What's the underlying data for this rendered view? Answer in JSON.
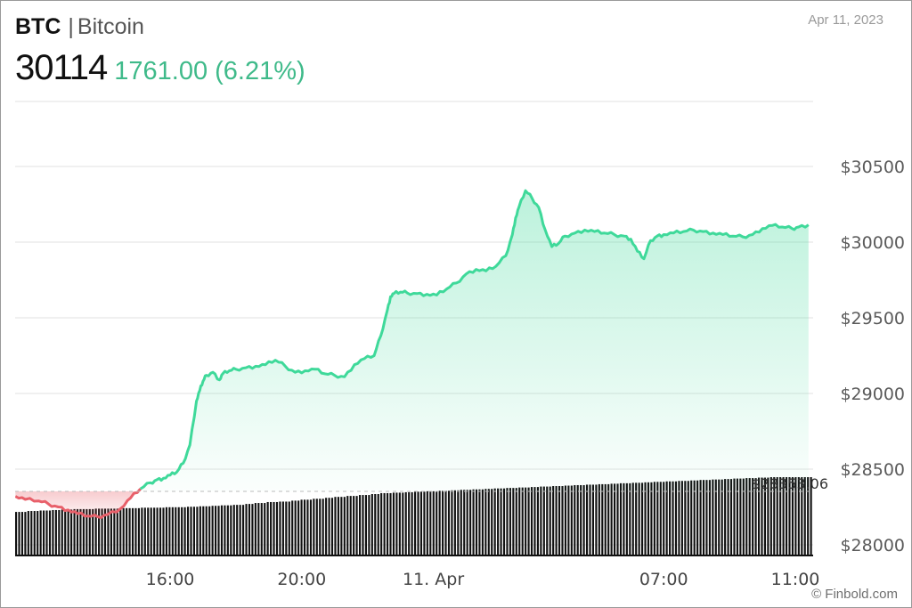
{
  "header": {
    "symbol": "BTC",
    "separator": "|",
    "name": "Bitcoin",
    "price": "30114",
    "change": "1761.00 (6.21%)",
    "date": "Apr 11, 2023"
  },
  "watermark": "© Finbold.com",
  "colors": {
    "up": "#3fd99a",
    "down": "#e8606a",
    "grid": "#e2e2e2",
    "volume": "#111111"
  },
  "chart_data": {
    "type": "area",
    "ylim": [
      27950,
      30750
    ],
    "y_ticks": [
      "$28000",
      "$28500",
      "$29000",
      "$29500",
      "$30000",
      "$30500"
    ],
    "y_tick_values": [
      28000,
      28500,
      29000,
      29500,
      30000,
      30500
    ],
    "x_tick_labels": [
      "16:00",
      "20:00",
      "11. Apr",
      "07:00",
      "11:00"
    ],
    "x_tick_hours": [
      16,
      20,
      24,
      31,
      35
    ],
    "x_range_hours": [
      11.3,
      35.4
    ],
    "reference": {
      "label": "$28353.06",
      "value": 28353.06
    },
    "series": [
      {
        "x": [
          11.3,
          11.6,
          12.0,
          12.3,
          12.6,
          12.9,
          13.2,
          13.5,
          13.8,
          14.1,
          14.5,
          14.8,
          15.1,
          15.4,
          15.6,
          15.8,
          16.0,
          16.2,
          16.4,
          16.6,
          16.8,
          16.9,
          17.0,
          17.1,
          17.3,
          17.5,
          17.6,
          17.8,
          18.0,
          18.3,
          18.6,
          18.9,
          19.2,
          19.5,
          19.8,
          20.1,
          20.4,
          20.7,
          21.0,
          21.3,
          21.6,
          21.9,
          22.2,
          22.4,
          22.6,
          22.7,
          22.8,
          23.0,
          23.2,
          23.5,
          23.8,
          24.1,
          24.4,
          24.7,
          25.0,
          25.3,
          25.6,
          25.9,
          26.2,
          26.4,
          26.5,
          26.6,
          26.8,
          27.0,
          27.2,
          27.4,
          27.6,
          27.8,
          28.0,
          28.3,
          28.6,
          28.9,
          29.2,
          29.5,
          29.8,
          30.0,
          30.2,
          30.4,
          30.6,
          30.8,
          31.0,
          31.3,
          31.6,
          31.9,
          32.2,
          32.5,
          32.8,
          33.1,
          33.4,
          33.7,
          34.0,
          34.3,
          34.6,
          34.9,
          35.1,
          35.4
        ],
        "y": [
          28320,
          28300,
          28290,
          28270,
          28250,
          28230,
          28205,
          28190,
          28185,
          28200,
          28240,
          28310,
          28370,
          28410,
          28430,
          28440,
          28460,
          28480,
          28540,
          28660,
          28950,
          29020,
          29080,
          29120,
          29140,
          29090,
          29130,
          29150,
          29160,
          29170,
          29180,
          29190,
          29220,
          29180,
          29140,
          29150,
          29160,
          29130,
          29120,
          29110,
          29190,
          29230,
          29250,
          29380,
          29550,
          29640,
          29660,
          29670,
          29665,
          29660,
          29655,
          29650,
          29690,
          29730,
          29790,
          29820,
          29810,
          29840,
          29910,
          30050,
          30160,
          30230,
          30340,
          30290,
          30230,
          30080,
          29970,
          29990,
          30040,
          30060,
          30080,
          30070,
          30060,
          30050,
          30040,
          30020,
          29940,
          29890,
          30010,
          30040,
          30050,
          30060,
          30070,
          30080,
          30070,
          30060,
          30050,
          30040,
          30035,
          30050,
          30090,
          30110,
          30100,
          30090,
          30100,
          30114
        ]
      }
    ],
    "volume": {
      "note": "relative heights",
      "values": [
        0.26,
        0.28,
        0.29,
        0.3,
        0.31,
        0.32,
        0.32,
        0.33,
        0.33,
        0.34,
        0.34,
        0.35,
        0.35,
        0.36,
        0.36,
        0.37,
        0.38,
        0.39,
        0.4,
        0.41,
        0.43,
        0.45,
        0.47,
        0.48,
        0.5,
        0.52,
        0.54,
        0.56,
        0.58,
        0.6,
        0.62,
        0.64,
        0.66,
        0.67,
        0.68,
        0.69,
        0.7,
        0.71,
        0.72,
        0.73,
        0.74,
        0.75,
        0.76,
        0.77,
        0.78,
        0.79,
        0.8,
        0.81,
        0.82,
        0.83,
        0.84,
        0.85,
        0.86,
        0.87,
        0.88,
        0.89,
        0.9,
        0.91,
        0.92,
        0.93,
        0.94,
        0.95,
        0.96,
        0.97,
        0.98,
        0.99,
        1.0,
        1.0,
        1.0,
        1.0
      ]
    }
  }
}
